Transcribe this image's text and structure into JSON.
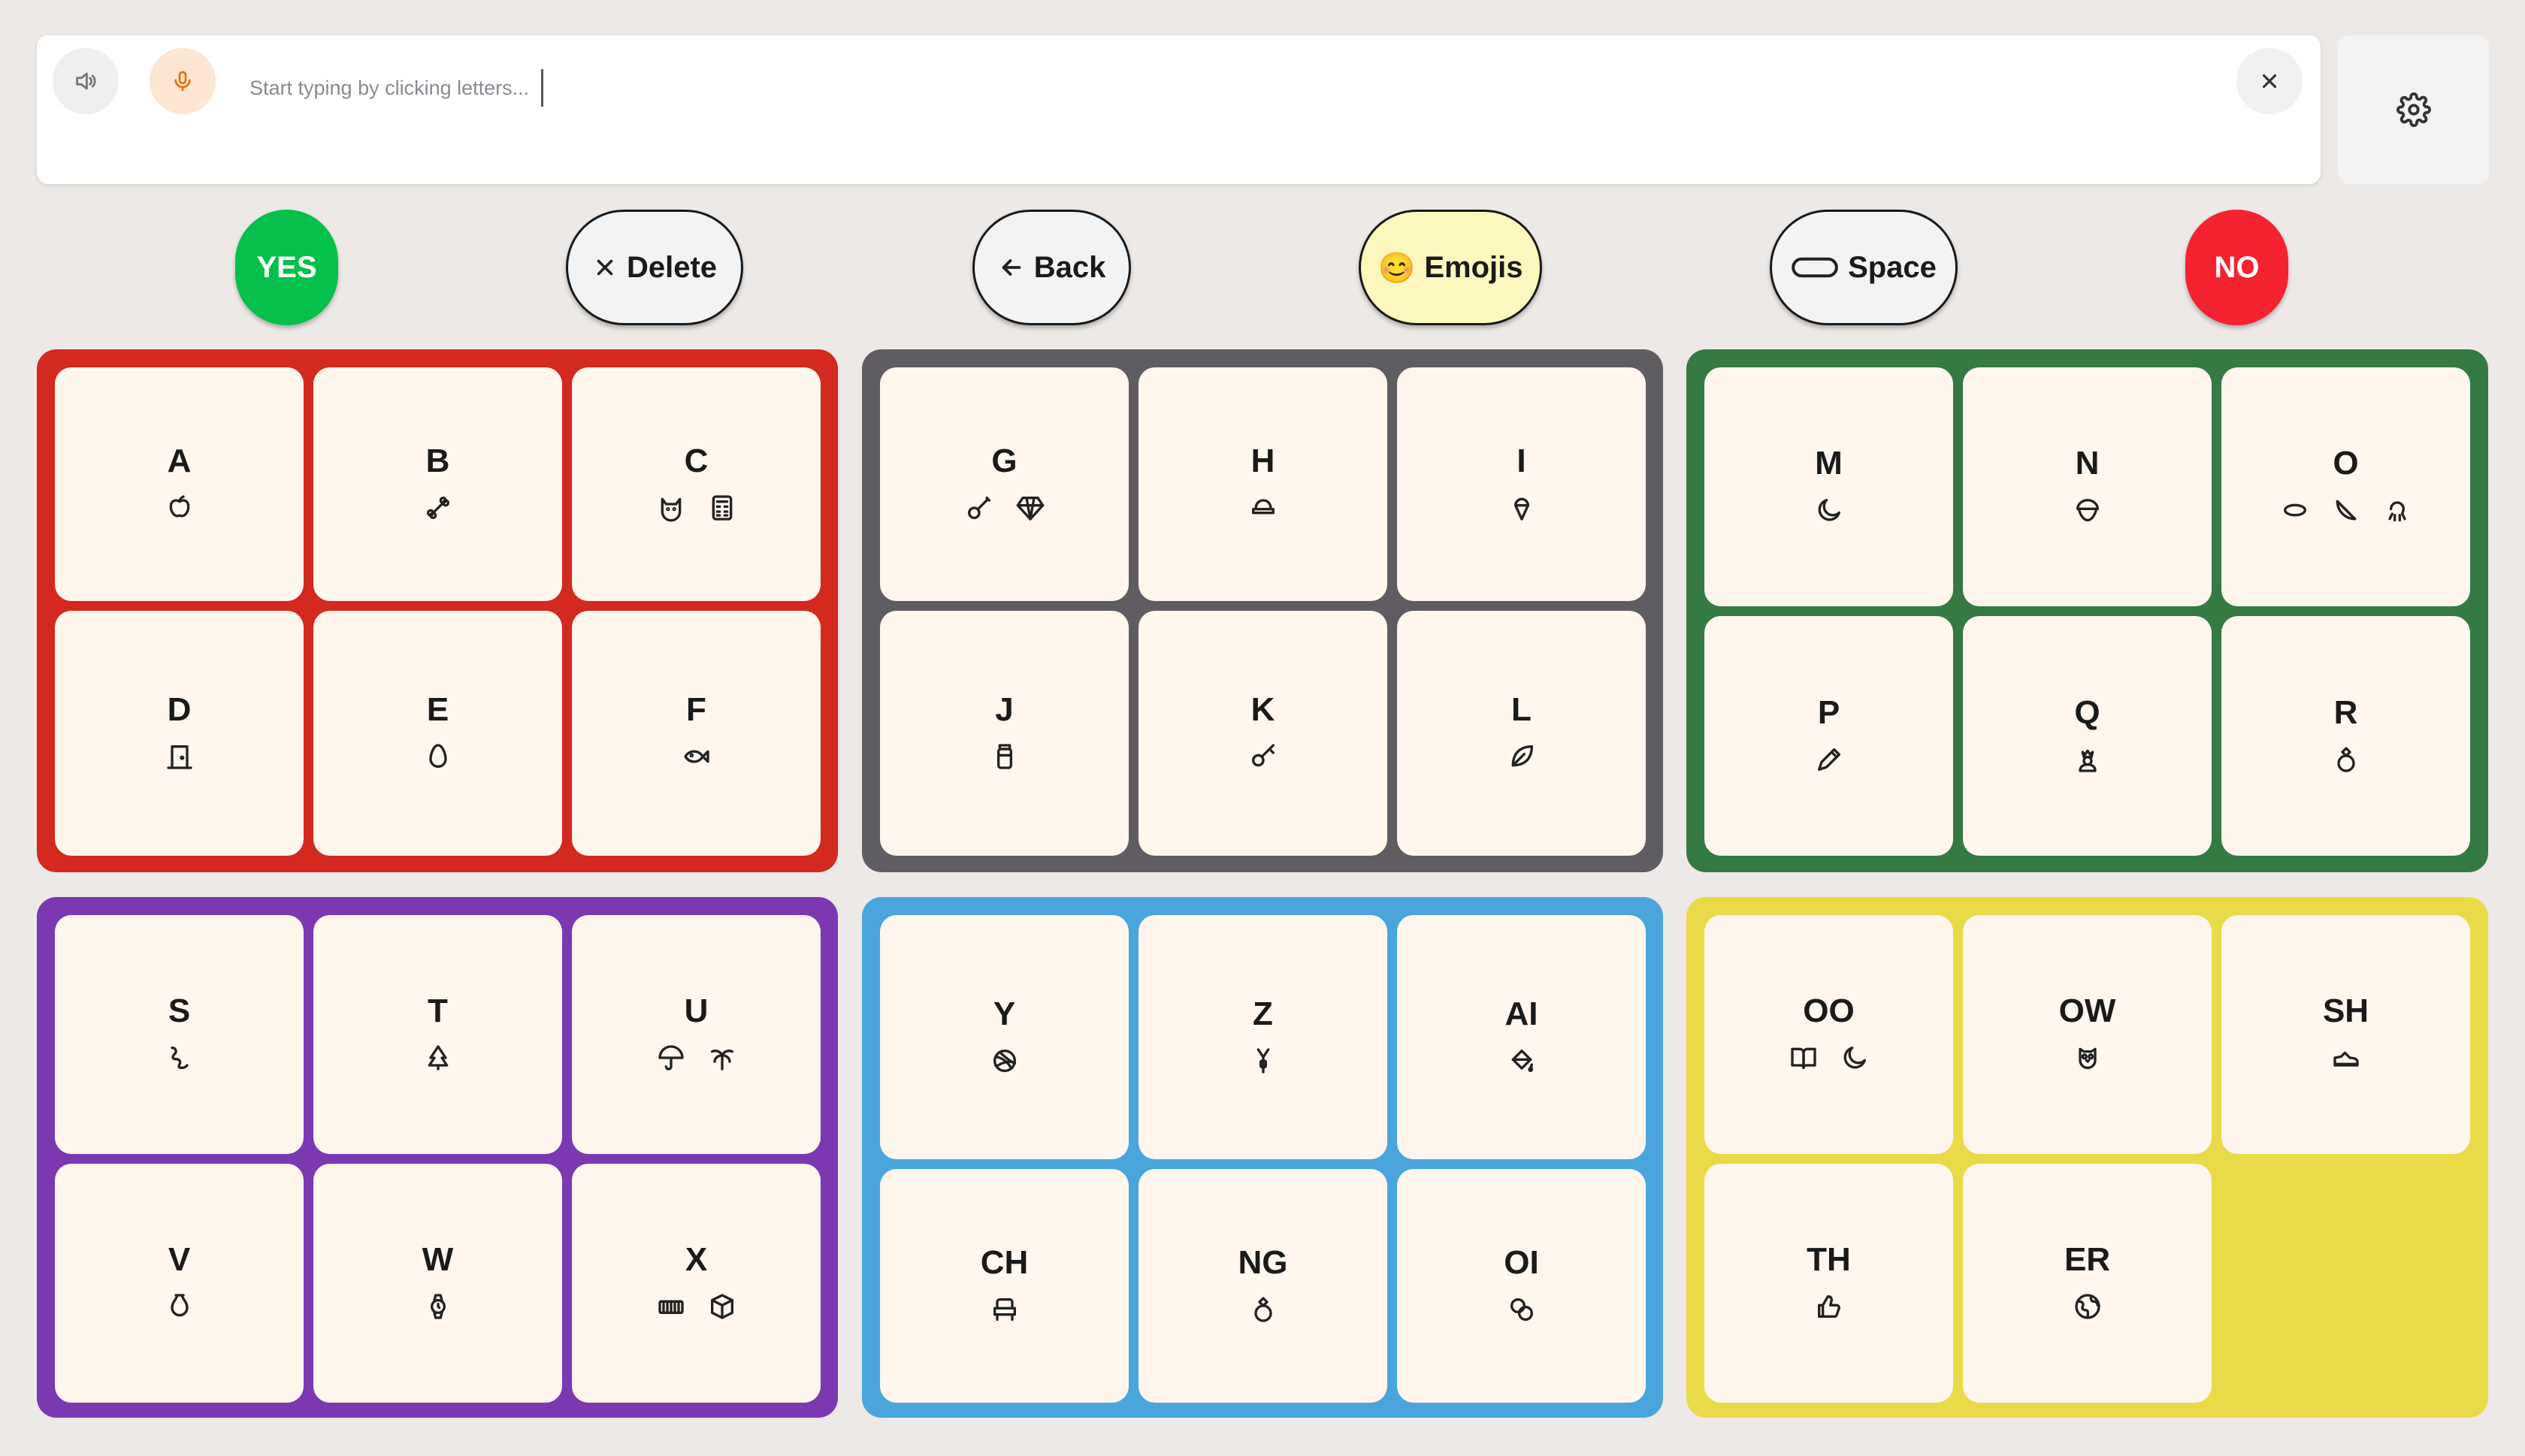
{
  "input": {
    "placeholder": "Start typing by clicking letters..."
  },
  "actions": {
    "yes": "YES",
    "delete": "Delete",
    "back": "Back",
    "emojis": "Emojis",
    "space": "Space",
    "no": "NO"
  },
  "emoji_icon": "😊",
  "colors": {
    "red": "#d3291e",
    "gray": "#5f5c62",
    "green": "#347a42",
    "purple": "#7b38b0",
    "blue": "#4aa5dc",
    "yellow": "#ebda48",
    "cell": "#fff6ee",
    "yes": "#05c04a",
    "no": "#f52330"
  },
  "panels": [
    {
      "name": "red",
      "cells": [
        {
          "letter": "A",
          "icons": [
            "apple"
          ]
        },
        {
          "letter": "B",
          "icons": [
            "bone"
          ]
        },
        {
          "letter": "C",
          "icons": [
            "cat",
            "calculator"
          ]
        },
        {
          "letter": "D",
          "icons": [
            "door"
          ]
        },
        {
          "letter": "E",
          "icons": [
            "egg"
          ]
        },
        {
          "letter": "F",
          "icons": [
            "fish"
          ]
        }
      ]
    },
    {
      "name": "gray",
      "cells": [
        {
          "letter": "G",
          "icons": [
            "guitar",
            "gem"
          ]
        },
        {
          "letter": "H",
          "icons": [
            "hat"
          ]
        },
        {
          "letter": "I",
          "icons": [
            "ice-cream"
          ]
        },
        {
          "letter": "J",
          "icons": [
            "jar"
          ]
        },
        {
          "letter": "K",
          "icons": [
            "key"
          ]
        },
        {
          "letter": "L",
          "icons": [
            "leaf"
          ]
        }
      ]
    },
    {
      "name": "green",
      "cells": [
        {
          "letter": "M",
          "icons": [
            "moon"
          ]
        },
        {
          "letter": "N",
          "icons": [
            "nut"
          ]
        },
        {
          "letter": "O",
          "icons": [
            "oval",
            "orange-slice",
            "octopus"
          ]
        },
        {
          "letter": "P",
          "icons": [
            "pencil"
          ]
        },
        {
          "letter": "Q",
          "icons": [
            "queen"
          ]
        },
        {
          "letter": "R",
          "icons": [
            "ring"
          ]
        }
      ]
    },
    {
      "name": "purple",
      "cells": [
        {
          "letter": "S",
          "icons": [
            "snake"
          ]
        },
        {
          "letter": "T",
          "icons": [
            "tree"
          ]
        },
        {
          "letter": "U",
          "icons": [
            "umbrella",
            "palm"
          ]
        },
        {
          "letter": "V",
          "icons": [
            "vase"
          ]
        },
        {
          "letter": "W",
          "icons": [
            "watch"
          ]
        },
        {
          "letter": "X",
          "icons": [
            "xylophone",
            "box"
          ]
        }
      ]
    },
    {
      "name": "blue",
      "cells": [
        {
          "letter": "Y",
          "icons": [
            "yarn"
          ]
        },
        {
          "letter": "Z",
          "icons": [
            "zipper"
          ]
        },
        {
          "letter": "AI",
          "icons": [
            "paint-bucket"
          ]
        },
        {
          "letter": "CH",
          "icons": [
            "chair"
          ]
        },
        {
          "letter": "NG",
          "icons": [
            "ring"
          ]
        },
        {
          "letter": "OI",
          "icons": [
            "coins"
          ]
        }
      ]
    },
    {
      "name": "yellow",
      "cells": [
        {
          "letter": "OO",
          "icons": [
            "book",
            "moon"
          ]
        },
        {
          "letter": "OW",
          "icons": [
            "owl"
          ]
        },
        {
          "letter": "SH",
          "icons": [
            "shoe"
          ]
        },
        {
          "letter": "TH",
          "icons": [
            "thumbs-up"
          ]
        },
        {
          "letter": "ER",
          "icons": [
            "earth"
          ]
        }
      ]
    }
  ]
}
